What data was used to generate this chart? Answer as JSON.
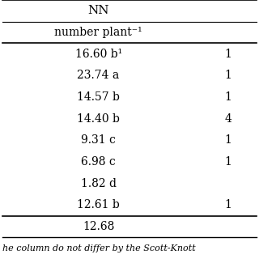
{
  "header1": "NN",
  "header2": "number plant⁻¹",
  "rows": [
    [
      "16.60 b¹",
      "1"
    ],
    [
      "23.74 a",
      "1"
    ],
    [
      "14.57 b",
      "1"
    ],
    [
      "14.40 b",
      "4"
    ],
    [
      "9.31 c",
      "1"
    ],
    [
      "6.98 c",
      "1"
    ],
    [
      "1.82 d",
      ""
    ],
    [
      "12.61 b",
      "1"
    ]
  ],
  "footer": "12.68",
  "footnote": "he column do not differ by the Scott-Knott",
  "font_size": 10
}
